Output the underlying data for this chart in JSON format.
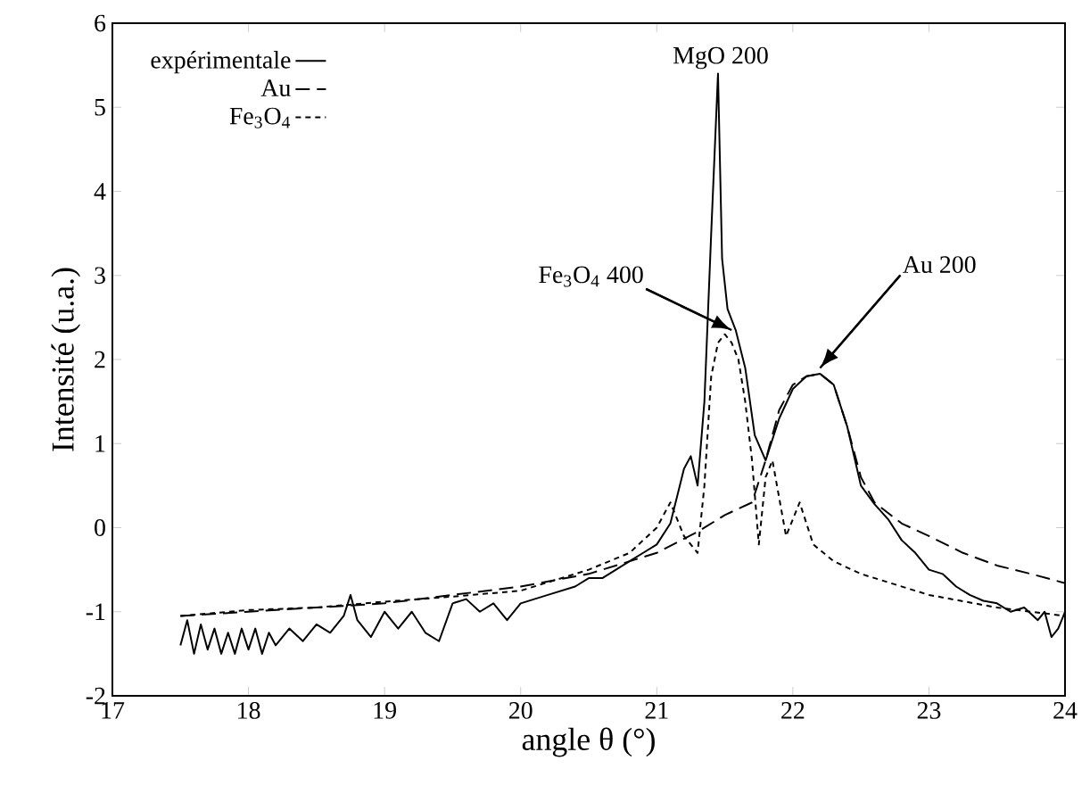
{
  "chart_data": {
    "type": "line",
    "xlabel": "angle θ (°)",
    "ylabel": "Intensité (u.a.)",
    "xlim": [
      17,
      24
    ],
    "ylim": [
      -2,
      6
    ],
    "xticks": [
      17,
      18,
      19,
      20,
      21,
      22,
      23,
      24
    ],
    "yticks": [
      -2,
      -1,
      0,
      1,
      2,
      3,
      4,
      5,
      6
    ],
    "grid": false,
    "legend": "top left",
    "marker": "none",
    "series": [
      {
        "name": "expérimentale",
        "color": "#000000",
        "line_style": "solid",
        "x": [
          17.5,
          17.55,
          17.6,
          17.65,
          17.7,
          17.75,
          17.8,
          17.85,
          17.9,
          17.95,
          18.0,
          18.05,
          18.1,
          18.15,
          18.2,
          18.3,
          18.4,
          18.5,
          18.6,
          18.7,
          18.75,
          18.8,
          18.9,
          19.0,
          19.1,
          19.2,
          19.3,
          19.4,
          19.5,
          19.6,
          19.7,
          19.8,
          19.9,
          20.0,
          20.1,
          20.2,
          20.3,
          20.4,
          20.5,
          20.6,
          20.7,
          20.8,
          20.9,
          21.0,
          21.1,
          21.2,
          21.25,
          21.3,
          21.35,
          21.4,
          21.45,
          21.48,
          21.52,
          21.58,
          21.65,
          21.72,
          21.8,
          21.9,
          22.0,
          22.1,
          22.2,
          22.3,
          22.4,
          22.5,
          22.6,
          22.7,
          22.8,
          22.9,
          23.0,
          23.1,
          23.2,
          23.3,
          23.4,
          23.5,
          23.6,
          23.7,
          23.8,
          23.85,
          23.9,
          23.95,
          24.0
        ],
        "values": [
          -1.4,
          -1.1,
          -1.5,
          -1.15,
          -1.45,
          -1.2,
          -1.5,
          -1.25,
          -1.5,
          -1.2,
          -1.45,
          -1.2,
          -1.5,
          -1.25,
          -1.4,
          -1.2,
          -1.35,
          -1.15,
          -1.25,
          -1.05,
          -0.8,
          -1.1,
          -1.3,
          -1.0,
          -1.2,
          -1.0,
          -1.25,
          -1.35,
          -0.9,
          -0.85,
          -1.0,
          -0.9,
          -1.1,
          -0.9,
          -0.85,
          -0.8,
          -0.75,
          -0.7,
          -0.6,
          -0.6,
          -0.5,
          -0.4,
          -0.3,
          -0.2,
          0.05,
          0.7,
          0.85,
          0.5,
          1.5,
          3.5,
          5.4,
          3.2,
          2.6,
          2.35,
          1.9,
          1.1,
          0.8,
          1.3,
          1.65,
          1.8,
          1.83,
          1.7,
          1.2,
          0.5,
          0.28,
          0.1,
          -0.15,
          -0.3,
          -0.5,
          -0.55,
          -0.7,
          -0.8,
          -0.87,
          -0.9,
          -1.0,
          -0.95,
          -1.1,
          -1.0,
          -1.3,
          -1.2,
          -1.0
        ]
      },
      {
        "name": "Au",
        "color": "#000000",
        "line_style": "dashed",
        "x": [
          17.5,
          18.0,
          18.5,
          19.0,
          19.5,
          20.0,
          20.5,
          21.0,
          21.3,
          21.5,
          21.7,
          21.8,
          21.9,
          22.0,
          22.1,
          22.2,
          22.3,
          22.4,
          22.5,
          22.6,
          22.8,
          23.0,
          23.25,
          23.5,
          23.75,
          24.0
        ],
        "values": [
          -1.05,
          -1.0,
          -0.95,
          -0.9,
          -0.8,
          -0.7,
          -0.55,
          -0.3,
          -0.05,
          0.15,
          0.3,
          0.8,
          1.4,
          1.7,
          1.8,
          1.83,
          1.7,
          1.2,
          0.6,
          0.3,
          0.05,
          -0.1,
          -0.3,
          -0.45,
          -0.55,
          -0.66
        ]
      },
      {
        "name": "Fe$_{3}$O$_{4}$",
        "color": "#000000",
        "line_style": "dotted",
        "x": [
          17.5,
          18.0,
          18.5,
          19.0,
          19.5,
          20.0,
          20.5,
          20.8,
          21.0,
          21.1,
          21.2,
          21.3,
          21.35,
          21.4,
          21.45,
          21.5,
          21.55,
          21.6,
          21.65,
          21.7,
          21.75,
          21.8,
          21.85,
          21.95,
          22.05,
          22.15,
          22.3,
          22.5,
          23.0,
          23.5,
          24.0
        ],
        "values": [
          -1.05,
          -0.98,
          -0.95,
          -0.88,
          -0.82,
          -0.75,
          -0.5,
          -0.3,
          0.0,
          0.3,
          -0.1,
          -0.3,
          0.5,
          1.8,
          2.2,
          2.3,
          2.2,
          2.0,
          1.5,
          0.8,
          -0.2,
          0.6,
          0.8,
          -0.1,
          0.3,
          -0.2,
          -0.4,
          -0.55,
          -0.8,
          -0.95,
          -1.05
        ]
      }
    ],
    "annotations": [
      {
        "text": "MgO 200",
        "x": 21.47,
        "y": 5.43
      },
      {
        "text": "Fe$_{3}$O$_{4}$ 400",
        "x": 21.55,
        "y": 2.35
      },
      {
        "text": "Au 200",
        "x": 22.2,
        "y": 1.9
      }
    ]
  }
}
